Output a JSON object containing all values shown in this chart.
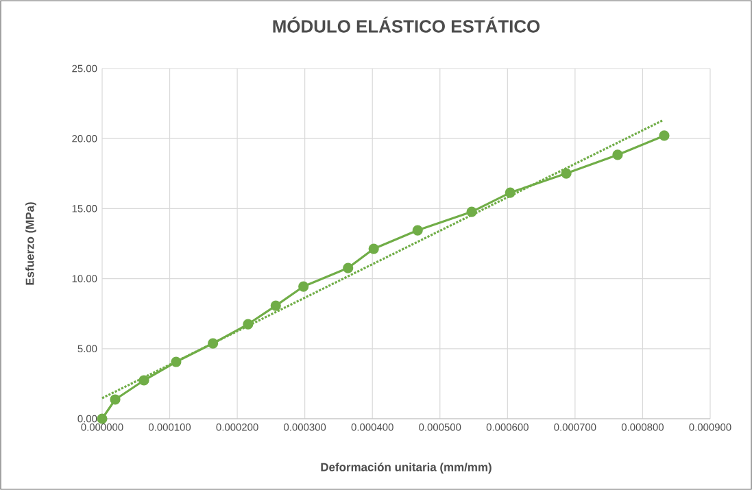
{
  "chart_data": {
    "type": "line",
    "title": "MÓDULO ELÁSTICO ESTÁTICO",
    "xlabel": "Deformación unitaria (mm/mm)",
    "ylabel": "Esfuerzo (MPa)",
    "x": [
      0,
      1.93e-05,
      6.19e-05,
      0.0001095,
      0.000164,
      0.000216,
      0.000257,
      0.000298,
      0.000364,
      0.000402,
      0.000467,
      0.000547,
      0.000604,
      0.000687,
      0.000763,
      0.000832
    ],
    "series": [
      {
        "color": "#70ad47",
        "marker": "circle",
        "line_style": "solid",
        "values": [
          0,
          1.37,
          2.74,
          4.06,
          5.38,
          6.75,
          8.07,
          9.44,
          10.76,
          12.13,
          13.45,
          14.77,
          16.14,
          17.51,
          18.84,
          20.21
        ]
      },
      {
        "type": "line",
        "color": "#70ad47",
        "marker": "none",
        "line_style": "dotted",
        "x": [
          0,
          0.000829
        ],
        "values": [
          1.47,
          21.28
        ]
      }
    ],
    "xlim": [
      0,
      0.0009
    ],
    "ylim": [
      0,
      25
    ],
    "xticks": [
      {
        "value": 0,
        "label": "0.000000"
      },
      {
        "value": 0.0001,
        "label": "0.000100"
      },
      {
        "value": 0.0002,
        "label": "0.000200"
      },
      {
        "value": 0.0003,
        "label": "0.000300"
      },
      {
        "value": 0.0004,
        "label": "0.000400"
      },
      {
        "value": 0.0005,
        "label": "0.000500"
      },
      {
        "value": 0.0006,
        "label": "0.000600"
      },
      {
        "value": 0.0007,
        "label": "0.000700"
      },
      {
        "value": 0.0008,
        "label": "0.000800"
      },
      {
        "value": 0.0009,
        "label": "0.000900"
      }
    ],
    "yticks": [
      {
        "value": 0,
        "label": "0.00"
      },
      {
        "value": 5,
        "label": "5.00"
      },
      {
        "value": 10,
        "label": "10.00"
      },
      {
        "value": 15,
        "label": "15.00"
      },
      {
        "value": 20,
        "label": "20.00"
      },
      {
        "value": 25,
        "label": "25.00"
      }
    ],
    "grid": true
  }
}
